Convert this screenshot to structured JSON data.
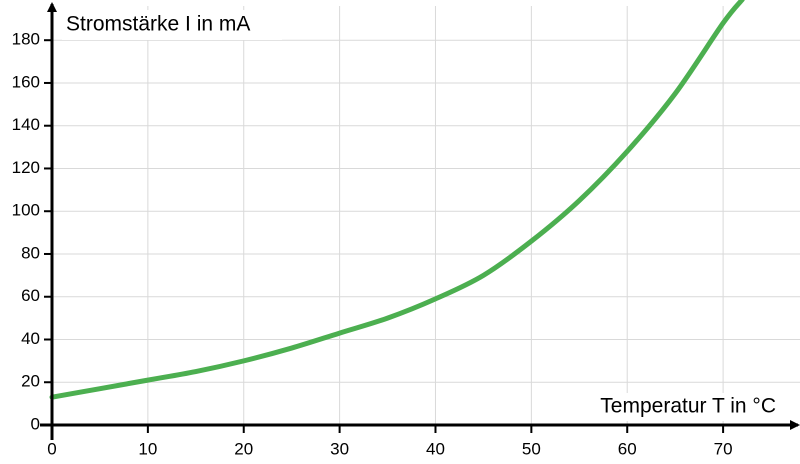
{
  "chart_data": {
    "type": "line",
    "y_label": "Stromstärke I in mA",
    "x_label": "Temperatur T in °C",
    "x": [
      0,
      5,
      10,
      15,
      20,
      25,
      30,
      35,
      40,
      45,
      50,
      55,
      60,
      65,
      70,
      72
    ],
    "series": [
      {
        "color": "#4caf50",
        "values": [
          13,
          17,
          21,
          25,
          30,
          36,
          43,
          50,
          59,
          70,
          86,
          105,
          128,
          155,
          188,
          199
        ]
      }
    ],
    "xlim": [
      0,
      77.5
    ],
    "ylim": [
      0,
      196
    ],
    "xticks": [
      0,
      10,
      20,
      30,
      40,
      50,
      60,
      70
    ],
    "yticks": [
      0,
      20,
      40,
      60,
      80,
      100,
      120,
      140,
      160,
      180
    ],
    "grid": true
  }
}
